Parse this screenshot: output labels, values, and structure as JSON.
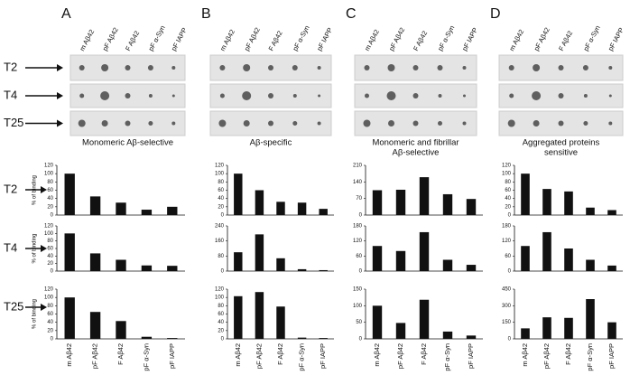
{
  "rows": [
    "T2",
    "T4",
    "T25"
  ],
  "panels": [
    {
      "letter": "A",
      "caption": [
        "Monomeric Aβ-selective"
      ],
      "blot_labels": [
        "m Aβ42",
        "pF Aβ42",
        "F Aβ42",
        "pF α-Syn",
        "pF IAPP"
      ]
    },
    {
      "letter": "B",
      "caption": [
        "Aβ-specific"
      ],
      "blot_labels": [
        "m Aβ42",
        "pF Aβ42",
        "F Aβ42",
        "pF α-Syn",
        "pF IAPP"
      ]
    },
    {
      "letter": "C",
      "caption": [
        "Monomeric and fibrillar",
        "Aβ-selective"
      ],
      "blot_labels": [
        "m Aβ42",
        "pF Aβ42",
        "F Aβ42",
        "pF α-Syn",
        "pF IAPP"
      ]
    },
    {
      "letter": "D",
      "caption": [
        "Aggregated proteins",
        "sensitive"
      ],
      "blot_labels": [
        "m Aβ42",
        "pF Aβ42",
        "F Aβ42",
        "pF α-Syn",
        "pF IAPP"
      ]
    }
  ],
  "chart_data": [
    {
      "type": "bar",
      "ylabel": "% of binding",
      "categories": [
        null,
        null,
        null,
        null,
        null
      ],
      "values": [
        100,
        45,
        30,
        13,
        20
      ],
      "color": "#111111",
      "ylim": [
        0,
        120
      ],
      "yticks": [
        0,
        20,
        40,
        60,
        80,
        100,
        120
      ]
    },
    {
      "type": "bar",
      "ylabel": "% of binding",
      "categories": [
        null,
        null,
        null,
        null,
        null
      ],
      "values": [
        100,
        47,
        30,
        15,
        14
      ],
      "color": "#111111",
      "ylim": [
        0,
        120
      ],
      "yticks": [
        0,
        20,
        40,
        60,
        80,
        100,
        120
      ]
    },
    {
      "type": "bar",
      "ylabel": "% of binding",
      "categories": [
        "m Aβ42",
        "pF Aβ42",
        "F Aβ42",
        "pF α-Syn",
        "pF IAPP"
      ],
      "values": [
        100,
        65,
        43,
        5,
        2
      ],
      "color": "#111111",
      "ylim": [
        0,
        120
      ],
      "yticks": [
        0,
        20,
        40,
        60,
        80,
        100,
        120
      ]
    },
    {
      "type": "bar",
      "categories": [
        null,
        null,
        null,
        null,
        null
      ],
      "values": [
        100,
        60,
        32,
        30,
        15
      ],
      "color": "#111111",
      "ylim": [
        0,
        120
      ],
      "yticks": [
        0,
        20,
        40,
        60,
        80,
        100,
        120
      ]
    },
    {
      "type": "bar",
      "categories": [
        null,
        null,
        null,
        null,
        null
      ],
      "values": [
        100,
        195,
        68,
        10,
        5
      ],
      "color": "#111111",
      "ylim": [
        0,
        240
      ],
      "yticks": [
        0,
        80,
        160,
        240
      ]
    },
    {
      "type": "bar",
      "categories": [
        "m Aβ42",
        "pF Aβ42",
        "F Aβ42",
        "pF α-Syn",
        "pF IAPP"
      ],
      "values": [
        103,
        113,
        78,
        3,
        2
      ],
      "color": "#111111",
      "ylim": [
        0,
        120
      ],
      "yticks": [
        0,
        20,
        40,
        60,
        80,
        100,
        120
      ]
    },
    {
      "type": "bar",
      "categories": [
        null,
        null,
        null,
        null,
        null
      ],
      "values": [
        105,
        107,
        160,
        88,
        68
      ],
      "color": "#111111",
      "ylim": [
        0,
        210
      ],
      "yticks": [
        0,
        70,
        140,
        210
      ]
    },
    {
      "type": "bar",
      "categories": [
        null,
        null,
        null,
        null,
        null
      ],
      "values": [
        100,
        80,
        155,
        45,
        25
      ],
      "color": "#111111",
      "ylim": [
        0,
        180
      ],
      "yticks": [
        0,
        60,
        120,
        180
      ]
    },
    {
      "type": "bar",
      "categories": [
        "m Aβ42",
        "pF Aβ42",
        "F Aβ42",
        "pF α-Syn",
        "pF IAPP"
      ],
      "values": [
        100,
        48,
        118,
        22,
        10
      ],
      "color": "#111111",
      "ylim": [
        0,
        150
      ],
      "yticks": [
        0,
        50,
        100,
        150
      ]
    },
    {
      "type": "bar",
      "categories": [
        null,
        null,
        null,
        null,
        null
      ],
      "values": [
        100,
        63,
        57,
        18,
        12
      ],
      "color": "#111111",
      "ylim": [
        0,
        120
      ],
      "yticks": [
        0,
        20,
        40,
        60,
        80,
        100,
        120
      ]
    },
    {
      "type": "bar",
      "categories": [
        null,
        null,
        null,
        null,
        null
      ],
      "values": [
        100,
        155,
        90,
        45,
        22
      ],
      "color": "#111111",
      "ylim": [
        0,
        180
      ],
      "yticks": [
        0,
        60,
        120,
        180
      ]
    },
    {
      "type": "bar",
      "categories": [
        "m Aβ42",
        "pF Aβ42",
        "F Aβ42",
        "pF α-Syn",
        "pF IAPP"
      ],
      "values": [
        95,
        195,
        190,
        360,
        150
      ],
      "color": "#111111",
      "ylim": [
        0,
        450
      ],
      "yticks": [
        0,
        150,
        300,
        450
      ]
    }
  ]
}
